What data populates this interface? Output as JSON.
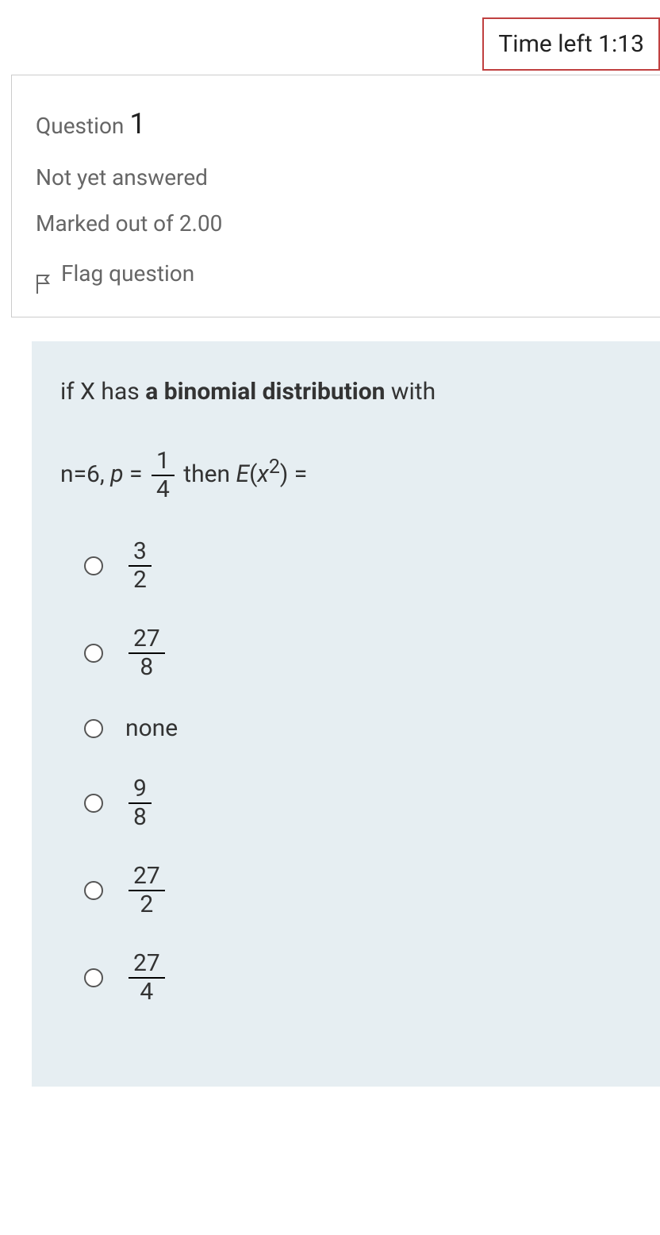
{
  "timer": {
    "label": "Time left",
    "value": "1:13"
  },
  "question_meta": {
    "label": "Question",
    "number": "1",
    "status": "Not yet answered",
    "marks": "Marked out of 2.00",
    "flag_label": "Flag question"
  },
  "question": {
    "prefix": "if X has ",
    "bold_part": "a binomial distribution",
    "with_text": " with",
    "n_text": "n=6, ",
    "p_var": "p",
    "equals": " = ",
    "p_num": "1",
    "p_den": "4",
    "then_text": " then ",
    "e_var": "E",
    "e_arg_open": "(",
    "x_var": "x",
    "sq": "2",
    "e_arg_close": ")",
    "eq2": " ="
  },
  "options": [
    {
      "type": "frac",
      "num": "3",
      "den": "2"
    },
    {
      "type": "frac",
      "num": "27",
      "den": "8"
    },
    {
      "type": "text",
      "text": "none"
    },
    {
      "type": "frac",
      "num": "9",
      "den": "8"
    },
    {
      "type": "frac",
      "num": "27",
      "den": "2"
    },
    {
      "type": "frac",
      "num": "27",
      "den": "4"
    }
  ],
  "colors": {
    "timer_border": "#c04040",
    "body_bg": "#e6eef2",
    "meta_border": "#cccccc",
    "text_muted": "#666666"
  }
}
